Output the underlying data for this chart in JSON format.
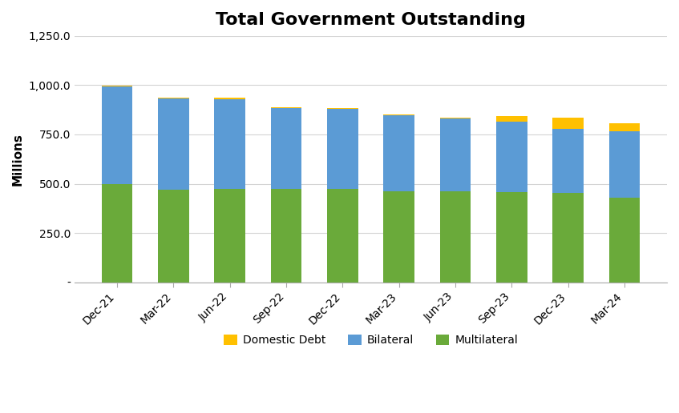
{
  "title": "Total Government Outstanding",
  "ylabel": "Millions",
  "categories": [
    "Dec-21",
    "Mar-22",
    "Jun-22",
    "Sep-22",
    "Dec-22",
    "Mar-23",
    "Jun-23",
    "Sep-23",
    "Dec-23",
    "Mar-24"
  ],
  "multilateral": [
    500,
    468,
    472,
    472,
    472,
    462,
    462,
    457,
    452,
    428
  ],
  "bilateral": [
    492,
    464,
    458,
    410,
    406,
    386,
    368,
    358,
    325,
    340
  ],
  "domestic_debt": [
    5,
    5,
    5,
    5,
    5,
    5,
    5,
    28,
    58,
    38
  ],
  "colors": {
    "multilateral": "#6aaa3a",
    "bilateral": "#5b9bd5",
    "domestic_debt": "#ffc000"
  },
  "ylim": [
    0,
    1250
  ],
  "yticks": [
    0,
    250,
    500,
    750,
    1000,
    1250
  ],
  "ytick_labels": [
    "-",
    "250.0",
    "500.0",
    "750.0",
    "1,000.0",
    "1,250.0"
  ],
  "background_color": "#ffffff",
  "grid_color": "#d3d3d3",
  "bar_width": 0.55,
  "legend_labels": [
    "Domestic Debt",
    "Bilateral",
    "Multilateral"
  ],
  "title_fontsize": 16,
  "axis_fontsize": 10,
  "legend_fontsize": 10
}
